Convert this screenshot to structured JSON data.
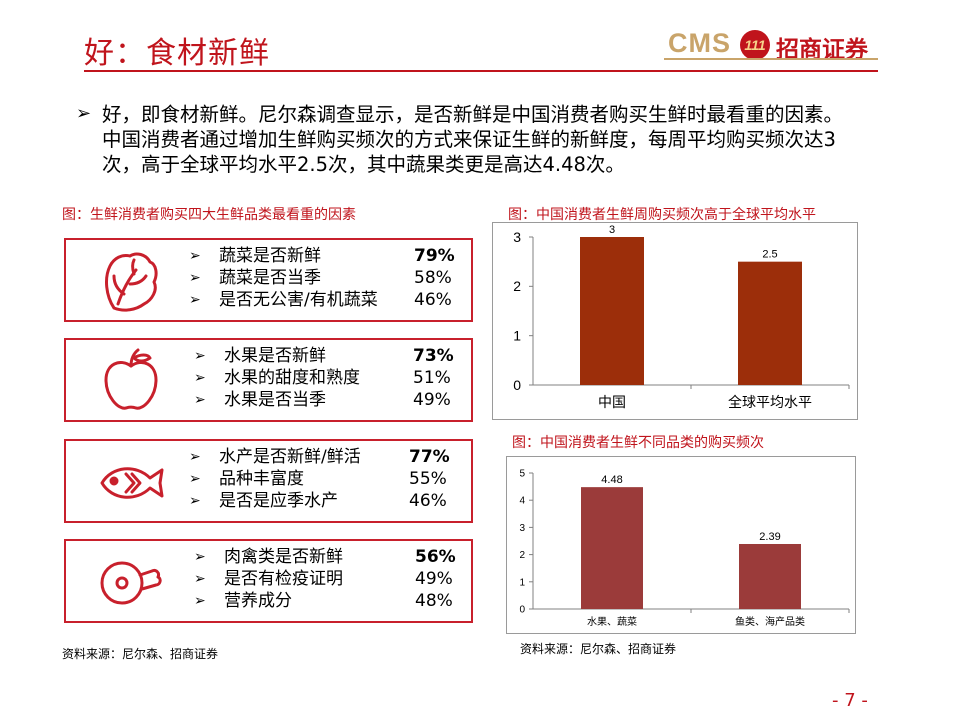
{
  "header": {
    "title": "好：食材新鲜",
    "logo_cms": "CMS",
    "logo_badge": "111",
    "logo_cn": "招商证券"
  },
  "summary": "好，即食材新鲜。尼尔森调查显示，是否新鲜是中国消费者购买生鲜时最看重的因素。中国消费者通过增加生鲜购买频次的方式来保证生鲜的新鲜度，每周平均购买频次达3次，高于全球平均水平2.5次，其中蔬果类更是高达4.48次。",
  "left_panel": {
    "caption": "图：生鲜消费者购买四大生鲜品类最看重的因素",
    "categories": [
      {
        "icon": "vegetable-icon",
        "factors": [
          {
            "label": "蔬菜是否新鲜",
            "value": "79%"
          },
          {
            "label": "蔬菜是否当季",
            "value": "58%"
          },
          {
            "label": "是否无公害/有机蔬菜",
            "value": "46%"
          }
        ]
      },
      {
        "icon": "apple-icon",
        "factors": [
          {
            "label": "水果是否新鲜",
            "value": "73%"
          },
          {
            "label": "水果的甜度和熟度",
            "value": "51%"
          },
          {
            "label": "水果是否当季",
            "value": "49%"
          }
        ]
      },
      {
        "icon": "fish-icon",
        "factors": [
          {
            "label": "水产是否新鲜/鲜活",
            "value": "77%"
          },
          {
            "label": "品种丰富度",
            "value": "55%"
          },
          {
            "label": "是否是应季水产",
            "value": "46%"
          }
        ]
      },
      {
        "icon": "meat-icon",
        "factors": [
          {
            "label": "肉禽类是否新鲜",
            "value": "56%"
          },
          {
            "label": "是否有检疫证明",
            "value": "49%"
          },
          {
            "label": "营养成分",
            "value": "48%"
          }
        ]
      }
    ],
    "source": "资料来源：尼尔森、招商证券"
  },
  "chart_data": [
    {
      "type": "bar",
      "title": "图：中国消费者生鲜周购买频次高于全球平均水平",
      "categories": [
        "中国",
        "全球平均水平"
      ],
      "values": [
        3,
        2.5
      ],
      "value_labels": [
        "3",
        "2.5"
      ],
      "ylim": [
        0,
        3
      ],
      "yticks": [
        "0",
        "1",
        "2",
        "3"
      ],
      "color": "#9c2e0a",
      "grid": false
    },
    {
      "type": "bar",
      "title": "图：中国消费者生鲜不同品类的购买频次",
      "categories": [
        "水果、蔬菜",
        "鱼类、海产品类"
      ],
      "values": [
        4.48,
        2.39
      ],
      "value_labels": [
        "4.48",
        "2.39"
      ],
      "ylim": [
        0,
        5
      ],
      "yticks": [
        "0",
        "1",
        "2",
        "3",
        "4",
        "5"
      ],
      "color": "#9b3b3a",
      "grid": false
    }
  ],
  "right_source": "资料来源：尼尔森、招商证券",
  "page_number": "- 7 -"
}
